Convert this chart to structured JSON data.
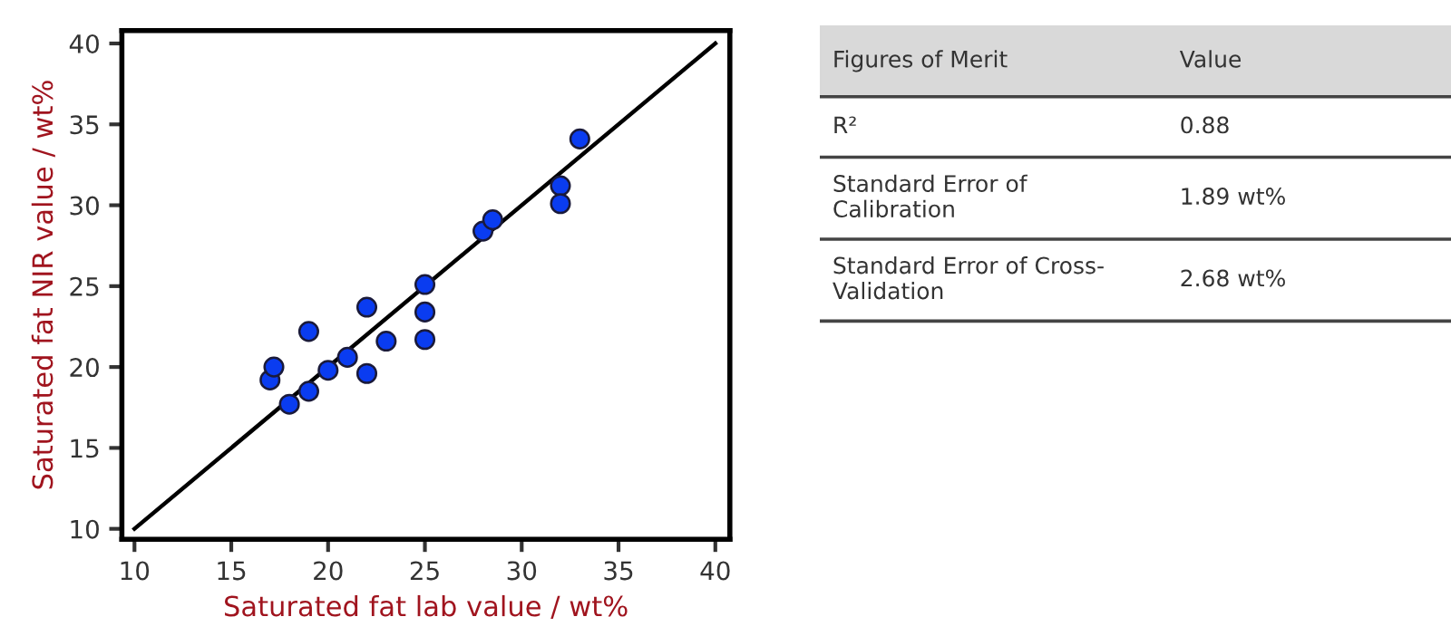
{
  "chart_data": [
    {
      "type": "scatter",
      "xlabel": "Saturated fat lab value / wt%",
      "ylabel": "Saturated fat NIR value / wt%",
      "xlim": [
        9.35,
        40.75
      ],
      "ylim": [
        9.35,
        40.8
      ],
      "xticks": [
        10,
        15,
        20,
        25,
        30,
        35,
        40
      ],
      "yticks": [
        10,
        15,
        20,
        25,
        30,
        35,
        40
      ],
      "grid": false,
      "series": [
        {
          "type": "scatter",
          "marker": "circle",
          "color": "#0a3cf0",
          "x": [
            17.0,
            17.2,
            18.0,
            19.0,
            19.0,
            20.0,
            21.0,
            22.0,
            22.0,
            23.0,
            25.0,
            25.0,
            25.0,
            28.0,
            28.5,
            32.0,
            32.0,
            33.0
          ],
          "values": [
            19.2,
            20.0,
            17.7,
            22.2,
            18.5,
            19.8,
            20.6,
            23.7,
            19.6,
            21.6,
            25.1,
            23.4,
            21.7,
            28.4,
            29.1,
            31.2,
            30.1,
            34.1
          ]
        },
        {
          "type": "line",
          "color": "#000000",
          "x": [
            10,
            40
          ],
          "values": [
            10,
            40
          ],
          "line_style": "solid",
          "marker": "none"
        }
      ]
    },
    {
      "type": "other",
      "annotations": [
        "Figures of Merit",
        "Value",
        "R²",
        "0.88",
        "Standard Error of\nCalibration",
        "1.89 wt%",
        "Standard Error of Cross-\nValidation",
        "2.68 wt%"
      ]
    }
  ]
}
